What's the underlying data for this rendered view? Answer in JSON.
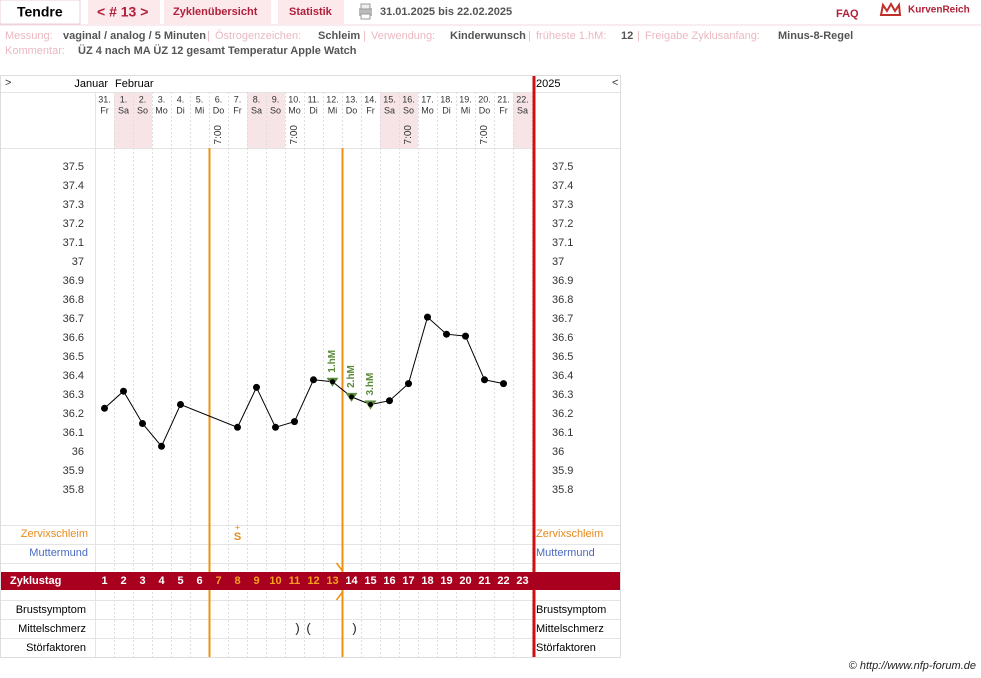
{
  "header": {
    "user": "Tendre",
    "cycle_nav": "< # 13 >",
    "tabs": [
      "Zyklenübersicht",
      "Statistik"
    ],
    "period": "31.01.2025 bis 22.02.2025",
    "faq": "FAQ",
    "brand": "KurvenReich"
  },
  "info": {
    "labels": [
      "Messung:",
      "Östrogenzeichen:",
      "Verwendung:",
      "früheste 1.hM:",
      "Freigabe Zyklusanfang:",
      "Kommentar:"
    ],
    "values": [
      "vaginal / analog / 5 Minuten",
      "Schleim",
      "Kinderwunsch",
      "12",
      "Minus-8-Regel",
      "ÜZ 4 nach MA ÜZ 12 gesamt Temperatur Apple Watch"
    ],
    "separator": "|"
  },
  "chart_data": {
    "type": "line",
    "nav_prev": ">",
    "nav_next": "<",
    "months": [
      "Januar",
      "Februar"
    ],
    "year": "2025",
    "dates": [
      "31.",
      "1.",
      "2.",
      "3.",
      "4.",
      "5.",
      "6.",
      "7.",
      "8.",
      "9.",
      "10.",
      "11.",
      "12.",
      "13.",
      "14.",
      "15.",
      "16.",
      "17.",
      "18.",
      "19.",
      "20.",
      "21.",
      "22."
    ],
    "categories": [
      "Fr",
      "Sa",
      "So",
      "Mo",
      "Di",
      "Mi",
      "Do",
      "Fr",
      "Sa",
      "So",
      "Mo",
      "Di",
      "Mi",
      "Do",
      "Fr",
      "Sa",
      "So",
      "Mo",
      "Di",
      "Mi",
      "Do",
      "Fr",
      "Sa"
    ],
    "times": [
      null,
      null,
      null,
      null,
      null,
      null,
      "7:00",
      null,
      null,
      null,
      "7:00",
      null,
      null,
      null,
      null,
      null,
      "7:00",
      null,
      null,
      null,
      "7:00",
      null,
      null
    ],
    "values": [
      36.23,
      36.32,
      36.15,
      36.03,
      36.25,
      null,
      null,
      36.13,
      36.34,
      36.13,
      36.16,
      36.38,
      36.37,
      36.29,
      36.25,
      36.27,
      36.36,
      36.71,
      36.62,
      36.61,
      36.38,
      36.36,
      null
    ],
    "markers": [
      null,
      null,
      null,
      null,
      null,
      null,
      null,
      null,
      null,
      null,
      null,
      null,
      "1.hM",
      "2.hM",
      "3.hM",
      null,
      null,
      null,
      null,
      null,
      null,
      null,
      null
    ],
    "color": "#000000",
    "marker_color": "#5a8a3a",
    "ylim": [
      35.6,
      37.6
    ],
    "yticks": [
      37.5,
      37.4,
      37.3,
      37.2,
      37.1,
      37,
      36.9,
      36.8,
      36.7,
      36.6,
      36.5,
      36.4,
      36.3,
      36.2,
      36.1,
      36,
      35.9,
      35.8
    ],
    "rows_top": [
      {
        "name": "Zervixschleim",
        "color": "#e88a1a"
      },
      {
        "name": "Muttermund",
        "color": "#4a6ac0"
      }
    ],
    "mucus": [
      null,
      null,
      null,
      null,
      null,
      null,
      null,
      "S",
      null,
      null,
      null,
      null,
      null,
      null,
      null,
      null,
      null,
      null,
      null,
      null,
      null,
      null,
      null
    ],
    "mucus_sup": [
      null,
      null,
      null,
      null,
      null,
      null,
      null,
      "+",
      null,
      null,
      null,
      null,
      null,
      null,
      null,
      null,
      null,
      null,
      null,
      null,
      null,
      null,
      null
    ],
    "cycle_label": "Zyklustag",
    "cycle_days": [
      1,
      2,
      3,
      4,
      5,
      6,
      7,
      8,
      9,
      10,
      11,
      12,
      13,
      14,
      15,
      16,
      17,
      18,
      19,
      20,
      21,
      22,
      23
    ],
    "fertile_window": [
      7,
      13
    ],
    "rows_bottom": [
      "Brustsymptom",
      "Mittelschmerz",
      "Störfaktoren"
    ],
    "mittelschmerz": [
      null,
      null,
      null,
      null,
      null,
      null,
      null,
      null,
      null,
      null,
      ")",
      "(",
      null,
      ")",
      null,
      null,
      null,
      null,
      null,
      null,
      null,
      null,
      null
    ]
  },
  "footer": "© http://www.nfp-forum.de"
}
